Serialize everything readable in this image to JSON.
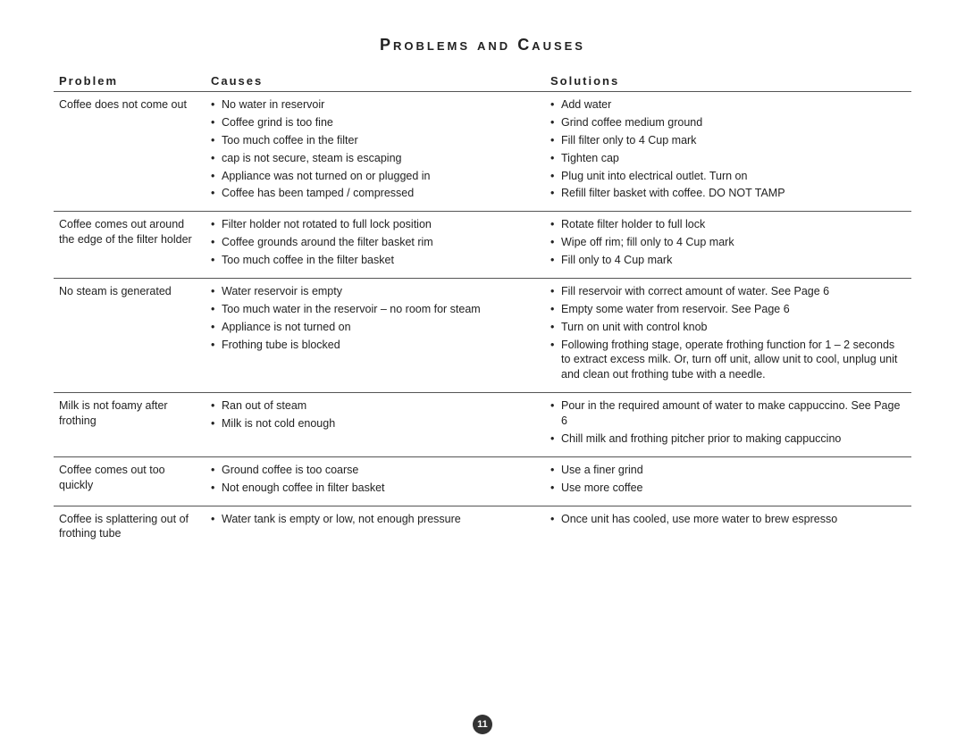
{
  "title": "Problems and Causes",
  "headers": {
    "problem": "Problem",
    "causes": "Causes",
    "solutions": "Solutions"
  },
  "rows": [
    {
      "problem": "Coffee does not come out",
      "causes": [
        "No water in reservoir",
        "Coffee grind is too fine",
        "Too much coffee in the filter",
        "cap is not secure, steam is escaping",
        "Appliance was not turned on or plugged in",
        "Coffee has been tamped / compressed"
      ],
      "solutions": [
        "Add water",
        "Grind coffee medium ground",
        "Fill filter only to 4 Cup mark",
        "Tighten cap",
        "Plug unit into electrical outlet. Turn on",
        "Refill filter basket with coffee. DO NOT TAMP"
      ]
    },
    {
      "problem": "Coffee comes out around the edge of the filter holder",
      "causes": [
        "Filter holder not rotated to full lock position",
        "Coffee grounds around the filter basket rim",
        "Too much coffee in the filter basket"
      ],
      "solutions": [
        "Rotate filter holder to full lock",
        "Wipe off rim; fill only to 4 Cup mark",
        "Fill only to 4 Cup mark"
      ]
    },
    {
      "problem": "No steam is generated",
      "causes": [
        "Water reservoir is empty",
        "Too much water in the reservoir – no room for steam",
        "Appliance is not turned on",
        "Frothing tube is blocked"
      ],
      "solutions": [
        "Fill reservoir with correct amount of water. See Page 6",
        "Empty some water from reservoir. See Page 6",
        "Turn on unit with control knob",
        "Following frothing stage, operate frothing function for 1 – 2 seconds to extract excess milk. Or, turn off unit, allow unit to cool, unplug unit and clean out frothing tube with a needle."
      ]
    },
    {
      "problem": "Milk is not foamy after frothing",
      "causes": [
        "Ran out of steam",
        "Milk is not cold enough"
      ],
      "solutions": [
        "Pour in the required amount of water to make cappuccino. See Page 6",
        "Chill milk and frothing pitcher prior to making cappuccino"
      ]
    },
    {
      "problem": "Coffee comes out too quickly",
      "causes": [
        "Ground coffee is too coarse",
        "Not enough coffee in filter basket"
      ],
      "solutions": [
        "Use a finer grind",
        "Use more coffee"
      ]
    },
    {
      "problem": "Coffee is splattering out of frothing tube",
      "causes": [
        "Water tank is empty or low, not enough pressure"
      ],
      "solutions": [
        "Once unit has cooled, use more water to brew espresso"
      ]
    }
  ],
  "page_number": "11"
}
